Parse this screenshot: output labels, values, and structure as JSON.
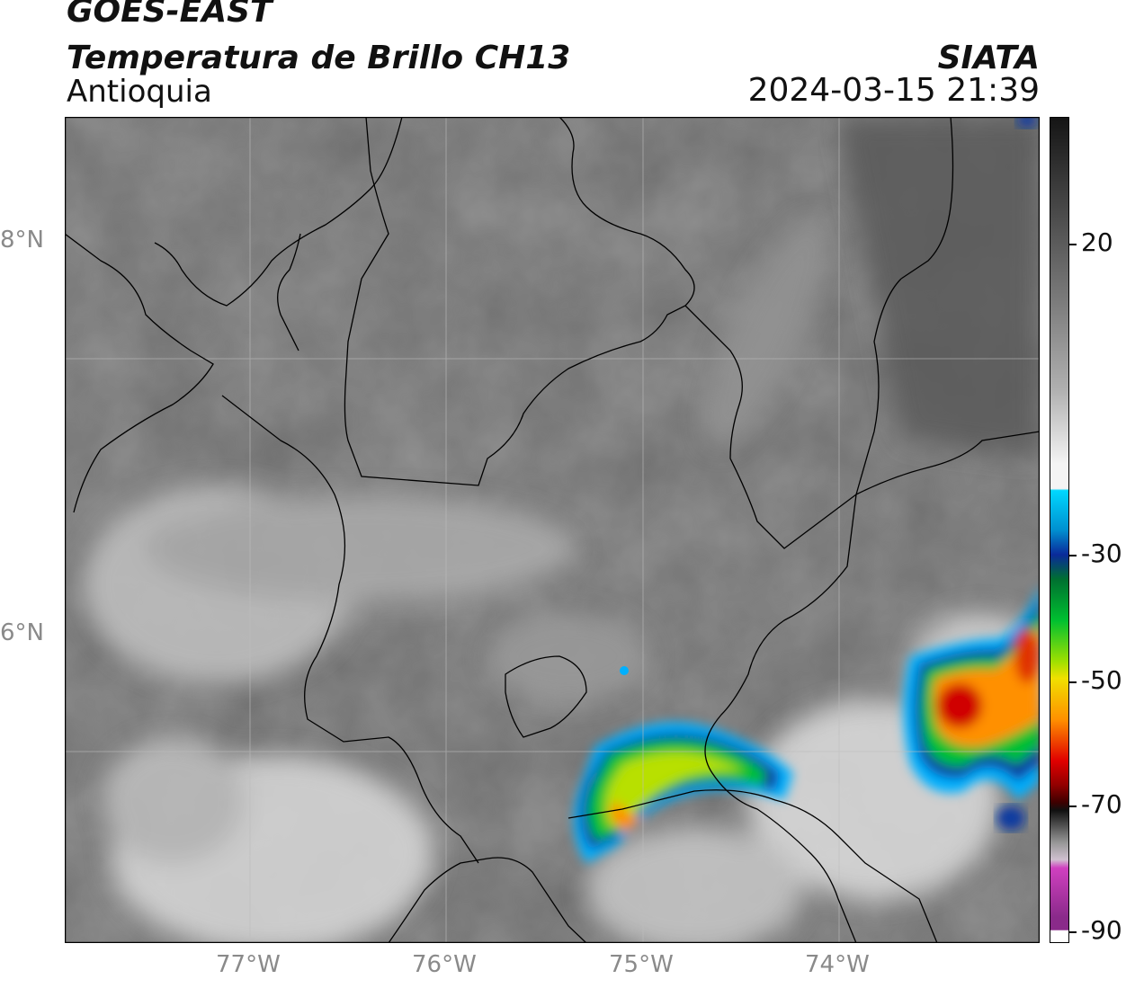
{
  "header": {
    "satellite": "GOES-EAST",
    "product": "Temperatura de Brillo CH13",
    "region": "Antioquia",
    "organization": "SIATA",
    "datetime": "2024-03-15 21:39"
  },
  "map": {
    "lat_labels": [
      "8°N",
      "6°N"
    ],
    "lon_labels": [
      "77°W",
      "76°W",
      "75°W",
      "74°W"
    ],
    "gridlines": true
  },
  "colorbar": {
    "tick_labels": [
      "20",
      "-30",
      "-50",
      "-70",
      "-90"
    ],
    "colors": {
      "warm_dark": "#151515",
      "gray_mid": "#7a7a7a",
      "white": "#f4f4f4",
      "cyan": "#00d8ff",
      "blue": "#0a2a9a",
      "green": "#00c030",
      "yellow": "#f0e000",
      "orange": "#ff9000",
      "red": "#e00000",
      "dark_red": "#400000",
      "magenta": "#d040c0",
      "purple": "#8a2a8a"
    }
  }
}
